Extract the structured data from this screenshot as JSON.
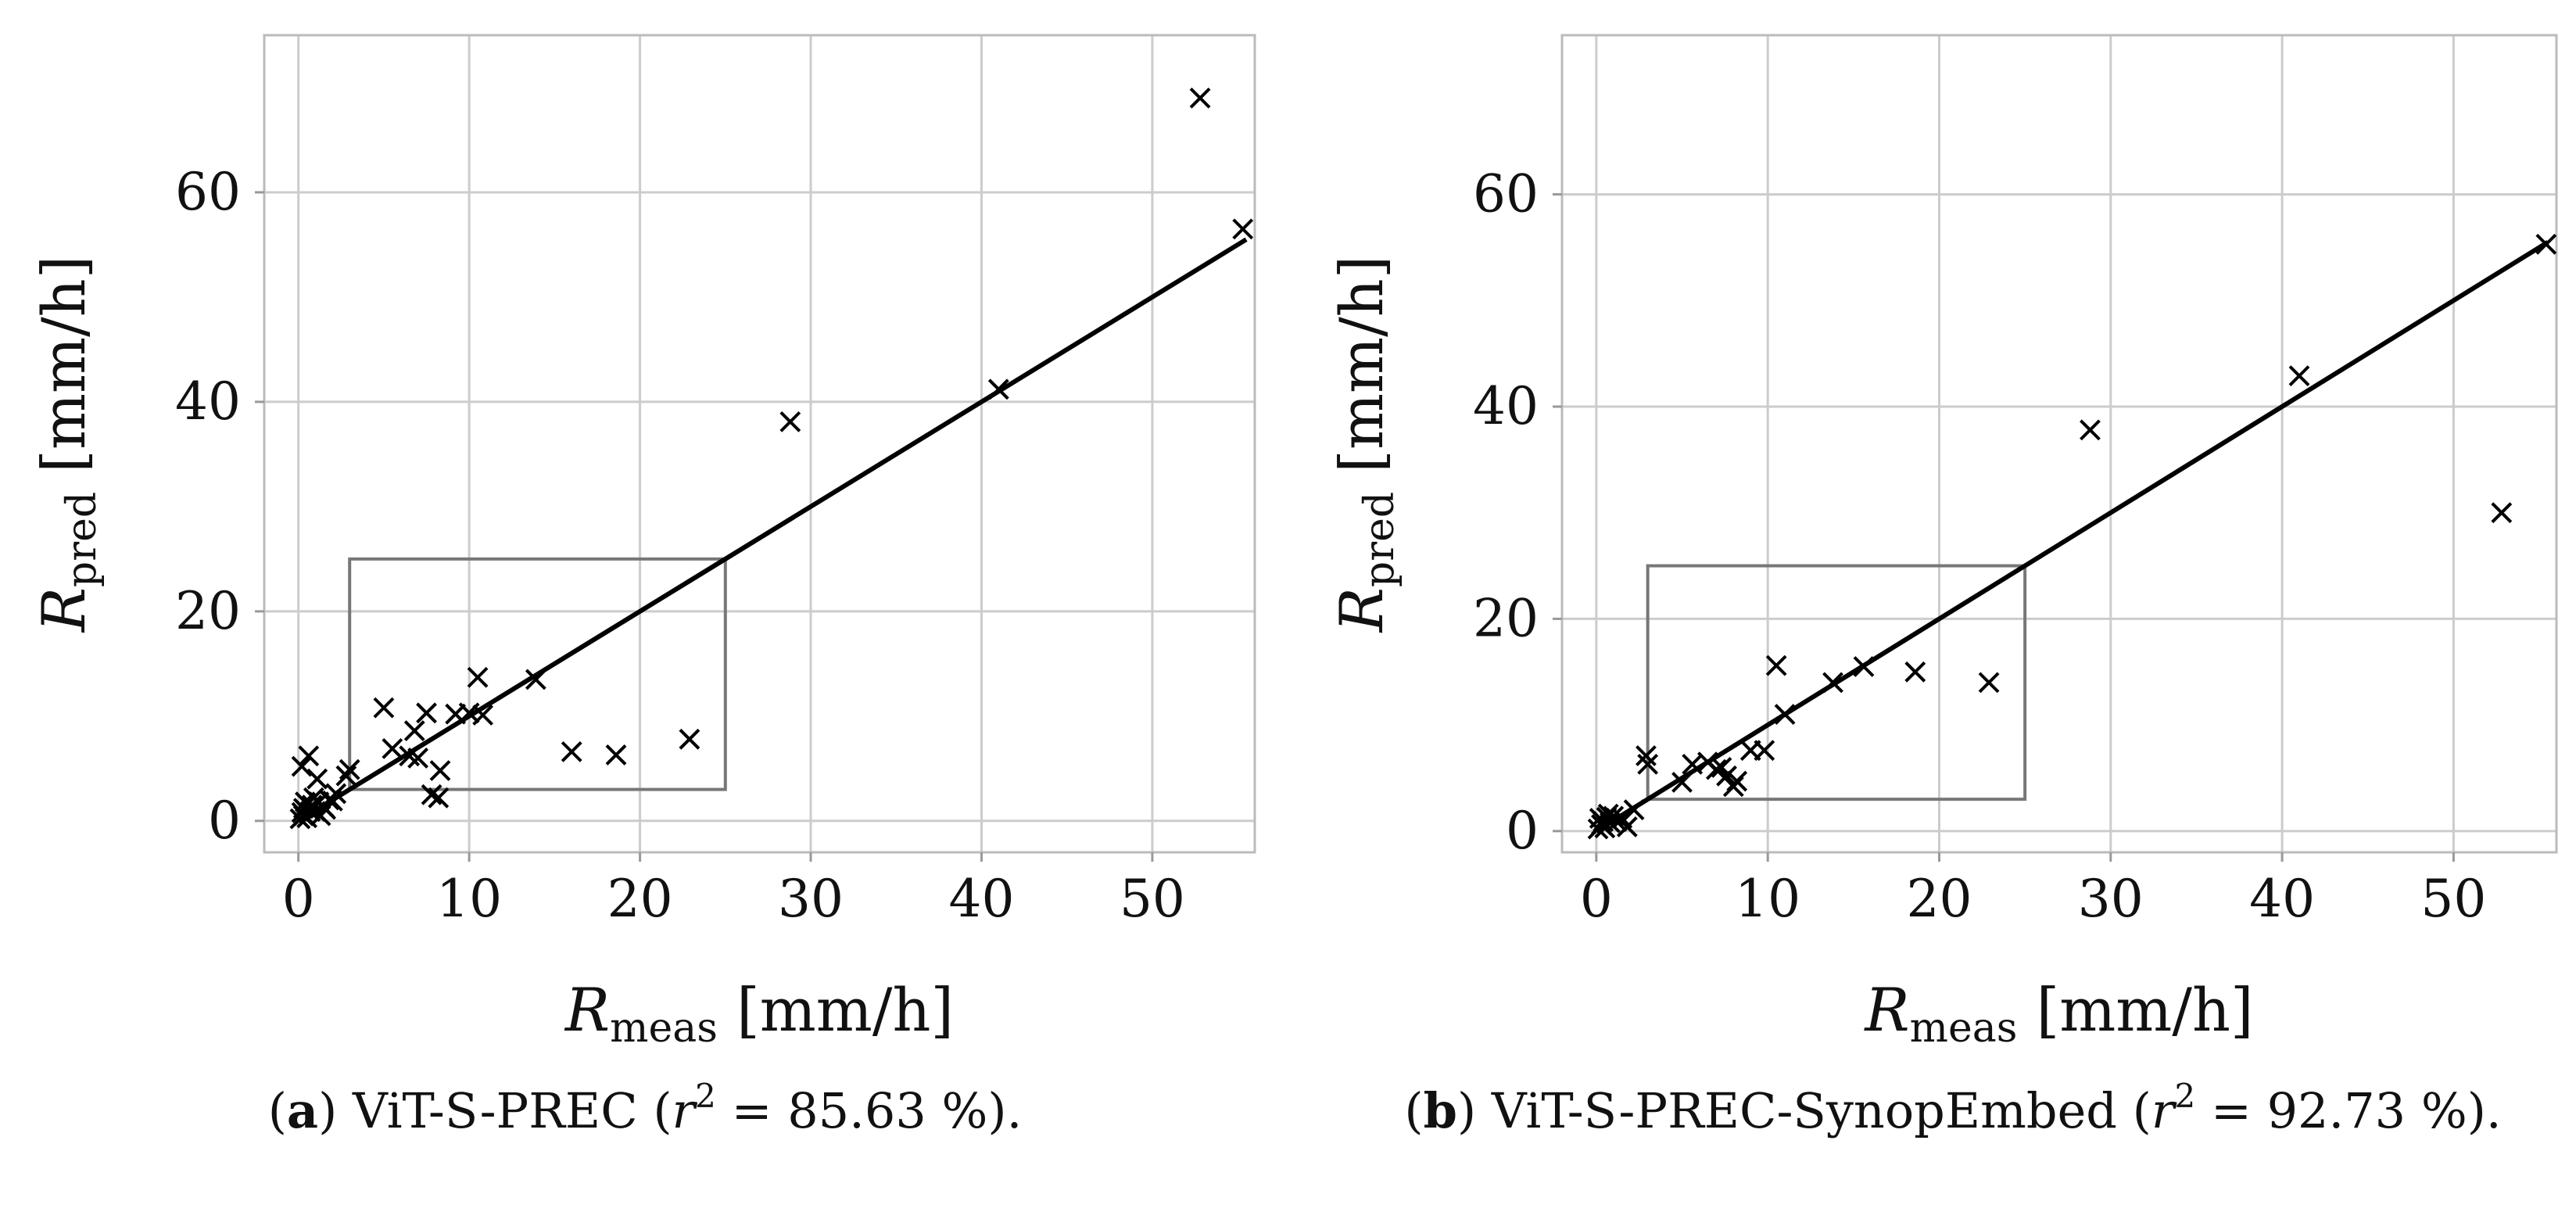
{
  "chart_data": [
    {
      "type": "scatter",
      "panel": "a",
      "caption_label": "a",
      "caption_text": " ViT-S-PREC (",
      "caption_r": "r",
      "caption_sup": "2",
      "caption_value": " = 85.63 %).",
      "xlabel": "R",
      "xlabel_sub": "meas",
      "xlabel_unit": " [mm/h]",
      "ylabel": "R",
      "ylabel_sub": "pred",
      "ylabel_unit": " [mm/h]",
      "xlim": [
        -2,
        56
      ],
      "ylim": [
        -3,
        75
      ],
      "xticks": [
        0,
        10,
        20,
        30,
        40,
        50
      ],
      "yticks": [
        0,
        20,
        40,
        60
      ],
      "grid": true,
      "fit_line": [
        [
          0,
          0
        ],
        [
          55.5,
          55.5
        ]
      ],
      "zoom_box": {
        "x": [
          3,
          25
        ],
        "y": [
          3,
          25
        ]
      },
      "marker": "x",
      "points": [
        [
          0.1,
          0.2
        ],
        [
          0.2,
          0.8
        ],
        [
          0.3,
          1.2
        ],
        [
          0.2,
          5.2
        ],
        [
          0.6,
          6.2
        ],
        [
          0.5,
          0.3
        ],
        [
          0.8,
          1.5
        ],
        [
          1.0,
          0.9
        ],
        [
          1.2,
          1.8
        ],
        [
          0.9,
          2.2
        ],
        [
          1.5,
          1.3
        ],
        [
          1.8,
          2.0
        ],
        [
          1.3,
          0.5
        ],
        [
          0.7,
          0.9
        ],
        [
          1.1,
          4.0
        ],
        [
          0.4,
          1.8
        ],
        [
          2.0,
          1.9
        ],
        [
          2.8,
          4.3
        ],
        [
          3.0,
          4.9
        ],
        [
          2.2,
          2.6
        ],
        [
          1.6,
          1.1
        ],
        [
          0.3,
          0.5
        ],
        [
          5.0,
          10.8
        ],
        [
          5.5,
          6.9
        ],
        [
          6.5,
          6.2
        ],
        [
          6.8,
          8.6
        ],
        [
          7.0,
          6.0
        ],
        [
          7.5,
          10.3
        ],
        [
          7.8,
          2.5
        ],
        [
          8.2,
          2.2
        ],
        [
          8.3,
          4.8
        ],
        [
          9.2,
          10.2
        ],
        [
          10.0,
          10.3
        ],
        [
          10.5,
          13.7
        ],
        [
          10.8,
          10.1
        ],
        [
          13.9,
          13.5
        ],
        [
          16.0,
          6.6
        ],
        [
          18.6,
          6.3
        ],
        [
          22.9,
          7.8
        ],
        [
          28.8,
          38.1
        ],
        [
          41.0,
          41.2
        ],
        [
          52.8,
          69.0
        ],
        [
          55.3,
          56.5
        ]
      ]
    },
    {
      "type": "scatter",
      "panel": "b",
      "caption_label": "b",
      "caption_text": " ViT-S-PREC-SynopEmbed (",
      "caption_r": "r",
      "caption_sup": "2",
      "caption_value": " = 92.73 %).",
      "xlabel": "R",
      "xlabel_sub": "meas",
      "xlabel_unit": " [mm/h]",
      "ylabel": "R",
      "ylabel_sub": "pred",
      "ylabel_unit": " [mm/h]",
      "xlim": [
        -2,
        56
      ],
      "ylim": [
        -2,
        75
      ],
      "xticks": [
        0,
        10,
        20,
        30,
        40,
        50
      ],
      "yticks": [
        0,
        20,
        40,
        60
      ],
      "grid": true,
      "fit_line": [
        [
          0,
          0
        ],
        [
          55.5,
          55.5
        ]
      ],
      "zoom_box": {
        "x": [
          3,
          25
        ],
        "y": [
          3,
          25
        ]
      },
      "marker": "x",
      "points": [
        [
          0.1,
          0.2
        ],
        [
          0.3,
          0.6
        ],
        [
          0.2,
          1.2
        ],
        [
          0.5,
          0.3
        ],
        [
          0.6,
          1.3
        ],
        [
          0.8,
          0.8
        ],
        [
          1.0,
          1.4
        ],
        [
          1.2,
          0.9
        ],
        [
          1.5,
          1.2
        ],
        [
          1.8,
          0.4
        ],
        [
          0.4,
          0.9
        ],
        [
          2.2,
          2.0
        ],
        [
          0.7,
          1.6
        ],
        [
          2.9,
          7.1
        ],
        [
          3.0,
          6.3
        ],
        [
          5.0,
          4.6
        ],
        [
          5.6,
          6.3
        ],
        [
          6.5,
          6.5
        ],
        [
          7.0,
          5.8
        ],
        [
          7.3,
          6.0
        ],
        [
          7.6,
          5.2
        ],
        [
          8.0,
          4.2
        ],
        [
          8.2,
          4.7
        ],
        [
          9.0,
          7.6
        ],
        [
          9.8,
          7.6
        ],
        [
          10.5,
          15.6
        ],
        [
          11.0,
          11.0
        ],
        [
          13.8,
          14.0
        ],
        [
          15.6,
          15.5
        ],
        [
          18.6,
          15.0
        ],
        [
          22.9,
          14.0
        ],
        [
          28.8,
          37.8
        ],
        [
          41.0,
          42.9
        ],
        [
          52.8,
          30.0
        ],
        [
          55.4,
          55.3
        ]
      ]
    }
  ]
}
